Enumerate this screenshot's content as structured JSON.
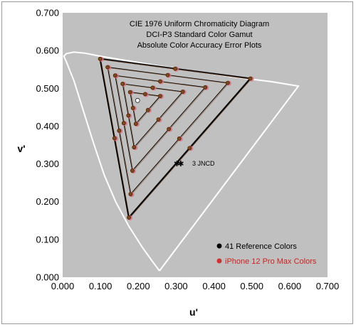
{
  "chart_data": {
    "type": "scatter",
    "title_lines": [
      "CIE 1976 Uniform Chromaticity Diagram",
      "DCI-P3 Standard Color Gamut",
      "Absolute Color Accuracy Error Plots"
    ],
    "xlabel": "u'",
    "ylabel": "v'",
    "xlim": [
      0.0,
      0.7
    ],
    "ylim": [
      0.0,
      0.7
    ],
    "x_ticks": [
      "0.000",
      "0.100",
      "0.200",
      "0.300",
      "0.400",
      "0.500",
      "0.600",
      "0.700"
    ],
    "y_ticks": [
      "0.000",
      "0.100",
      "0.200",
      "0.300",
      "0.400",
      "0.500",
      "0.600",
      "0.700"
    ],
    "background_color": "#c0c0c0",
    "locus_color": "#ffffff",
    "triangle_color": "#000000",
    "saturation_levels": [
      1.0,
      0.8,
      0.6,
      0.4,
      0.2
    ],
    "white_point": {
      "u": 0.198,
      "v": 0.468
    },
    "primaries": {
      "red": {
        "u": 0.496,
        "v": 0.526
      },
      "green": {
        "u": 0.099,
        "v": 0.578
      },
      "blue": {
        "u": 0.175,
        "v": 0.158
      }
    },
    "spectral_locus": [
      [
        0.256,
        0.017
      ],
      [
        0.235,
        0.045
      ],
      [
        0.21,
        0.08
      ],
      [
        0.175,
        0.135
      ],
      [
        0.14,
        0.2
      ],
      [
        0.11,
        0.27
      ],
      [
        0.08,
        0.36
      ],
      [
        0.055,
        0.44
      ],
      [
        0.03,
        0.52
      ],
      [
        0.01,
        0.57
      ],
      [
        0.003,
        0.585
      ],
      [
        0.01,
        0.592
      ],
      [
        0.03,
        0.596
      ],
      [
        0.06,
        0.593
      ],
      [
        0.1,
        0.585
      ],
      [
        0.16,
        0.575
      ],
      [
        0.25,
        0.56
      ],
      [
        0.35,
        0.545
      ],
      [
        0.45,
        0.53
      ],
      [
        0.55,
        0.518
      ],
      [
        0.623,
        0.506
      ],
      [
        0.256,
        0.017
      ]
    ],
    "annotation": {
      "text": "3 JNCD",
      "u": 0.27,
      "v": 0.305,
      "marker_u": [
        0.302,
        0.312
      ]
    },
    "legend": [
      {
        "label": "41 Reference Colors",
        "color": "#000000",
        "text_color": "#000000"
      },
      {
        "label": "iPhone 12 Pro Max Colors",
        "color": "#cc3333",
        "text_color": "#cc2222"
      }
    ]
  }
}
